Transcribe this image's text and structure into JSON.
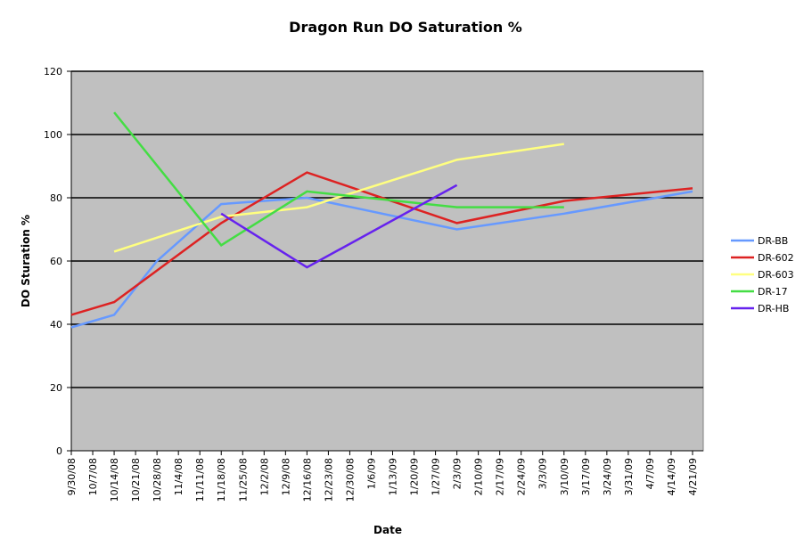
{
  "chart_data": {
    "type": "line",
    "title": "Dragon Run DO Saturation %",
    "xlabel": "Date",
    "ylabel": "DO Sturation %",
    "ylim": [
      0,
      120
    ],
    "yticks": [
      0,
      20,
      40,
      60,
      80,
      100,
      120
    ],
    "grid": true,
    "legend_position": "right",
    "plot_background": "#c0c0c0",
    "x_tick_labels": [
      "9/30/08",
      "10/7/08",
      "10/14/08",
      "10/21/08",
      "10/28/08",
      "11/4/08",
      "11/11/08",
      "11/18/08",
      "11/25/08",
      "12/2/08",
      "12/9/08",
      "12/16/08",
      "12/23/08",
      "12/30/08",
      "1/6/09",
      "1/13/09",
      "1/20/09",
      "1/27/09",
      "2/3/09",
      "2/10/09",
      "2/17/09",
      "2/24/09",
      "3/3/09",
      "3/10/09",
      "3/17/09",
      "3/24/09",
      "3/31/09",
      "4/7/09",
      "4/14/09",
      "4/21/09"
    ],
    "series": [
      {
        "name": "DR-BB",
        "color": "#6699ff",
        "x": [
          "9/30/08",
          "10/14/08",
          "10/28/08",
          "11/18/08",
          "12/16/08",
          "2/3/09",
          "3/10/09",
          "4/21/09"
        ],
        "values": [
          39,
          43,
          60,
          78,
          80,
          70,
          75,
          82
        ]
      },
      {
        "name": "DR-602",
        "color": "#dd2222",
        "x": [
          "9/30/08",
          "10/14/08",
          "11/18/08",
          "12/16/08",
          "2/3/09",
          "3/10/09",
          "4/21/09"
        ],
        "values": [
          43,
          47,
          72,
          88,
          72,
          79,
          83
        ]
      },
      {
        "name": "DR-603",
        "color": "#ffff80",
        "x": [
          "10/14/08",
          "11/18/08",
          "12/16/08",
          "2/3/09",
          "3/10/09"
        ],
        "values": [
          63,
          74,
          77,
          92,
          97
        ]
      },
      {
        "name": "DR-17",
        "color": "#44dd44",
        "x": [
          "10/14/08",
          "11/18/08",
          "12/16/08",
          "2/3/09",
          "3/10/09"
        ],
        "values": [
          107,
          65,
          82,
          77,
          77
        ]
      },
      {
        "name": "DR-HB",
        "color": "#6622ee",
        "x": [
          "11/18/08",
          "12/16/08",
          "2/3/09"
        ],
        "values": [
          75,
          58,
          84
        ]
      }
    ]
  }
}
